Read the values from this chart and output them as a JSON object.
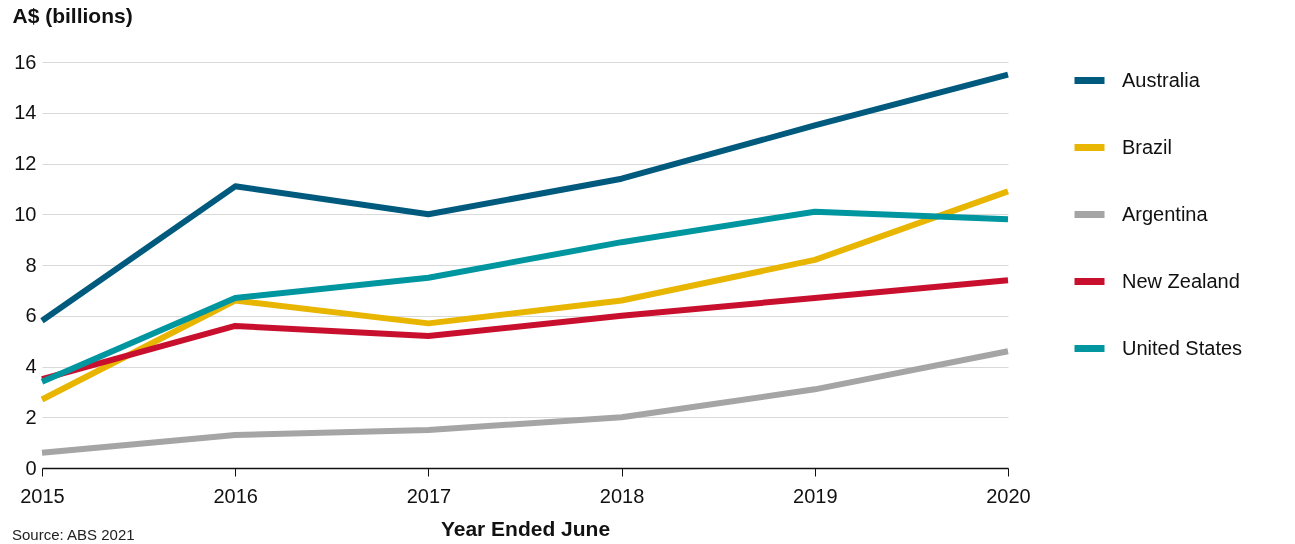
{
  "chart_data": {
    "type": "line",
    "ylabel": "A$ (billions)",
    "xlabel": "Year Ended June",
    "annotations": [
      "Source: ABS 2021"
    ],
    "x": [
      2015,
      2016,
      2017,
      2018,
      2019,
      2020
    ],
    "xlim": [
      2015,
      2020
    ],
    "xticks": [
      2015,
      2016,
      2017,
      2018,
      2019,
      2020
    ],
    "ylim": [
      0,
      16
    ],
    "yticks": [
      0,
      2,
      4,
      6,
      8,
      10,
      12,
      14,
      16
    ],
    "grid": "y",
    "legend": "right",
    "line_style": "solid",
    "series": [
      {
        "name": "Australia",
        "color": "#005a7e",
        "values": [
          5.8,
          11.1,
          10.0,
          11.4,
          13.5,
          15.5
        ]
      },
      {
        "name": "Brazil",
        "color": "#e8b500",
        "values": [
          2.7,
          6.6,
          5.7,
          6.6,
          8.2,
          10.9
        ]
      },
      {
        "name": "Argentina",
        "color": "#a5a5a5",
        "values": [
          0.6,
          1.3,
          1.5,
          2.0,
          3.1,
          4.6
        ]
      },
      {
        "name": "New Zealand",
        "color": "#c8102e",
        "values": [
          3.5,
          5.6,
          5.2,
          6.0,
          6.7,
          7.4
        ]
      },
      {
        "name": "United States",
        "color": "#0096a0",
        "values": [
          3.4,
          6.7,
          7.5,
          8.9,
          10.1,
          9.8
        ]
      }
    ]
  }
}
